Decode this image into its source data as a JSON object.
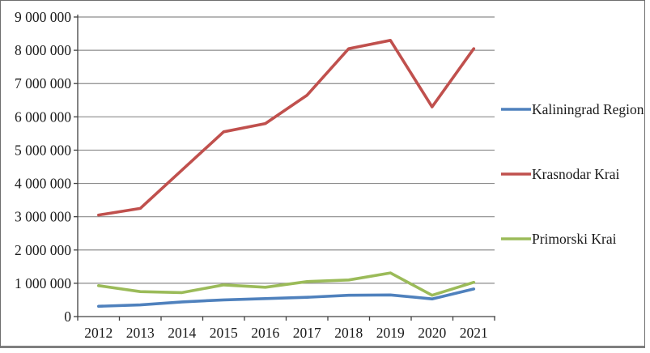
{
  "page": {
    "background": "#ffffff",
    "frame_border_color": "#7f7f7f"
  },
  "chart_data": {
    "type": "line",
    "title": "",
    "xlabel": "",
    "ylabel": "",
    "categories": [
      "2012",
      "2013",
      "2014",
      "2015",
      "2016",
      "2017",
      "2018",
      "2019",
      "2020",
      "2021"
    ],
    "series": [
      {
        "name": "Kaliningrad Region",
        "color": "#4F81BD",
        "values": [
          310000,
          350000,
          440000,
          500000,
          540000,
          580000,
          640000,
          650000,
          530000,
          830000
        ]
      },
      {
        "name": "Krasnodar Krai",
        "color": "#C0504D",
        "values": [
          3050000,
          3250000,
          4400000,
          5550000,
          5800000,
          6650000,
          8050000,
          8300000,
          6300000,
          8050000
        ]
      },
      {
        "name": "Primorski Krai",
        "color": "#9BBB59",
        "values": [
          930000,
          750000,
          720000,
          950000,
          880000,
          1050000,
          1100000,
          1310000,
          640000,
          1030000
        ]
      }
    ],
    "ylim": [
      0,
      9000000
    ],
    "y_tick_step": 1000000,
    "y_tick_labels": [
      "0",
      "1 000 000",
      "2 000 000",
      "3 000 000",
      "4 000 000",
      "5 000 000",
      "6 000 000",
      "7 000 000",
      "8 000 000",
      "9 000 000"
    ],
    "grid": true,
    "gridline_color": "#8c8c8c",
    "axis_color": "#404040",
    "text_color": "#1a1a1a",
    "legend_position": "right"
  }
}
